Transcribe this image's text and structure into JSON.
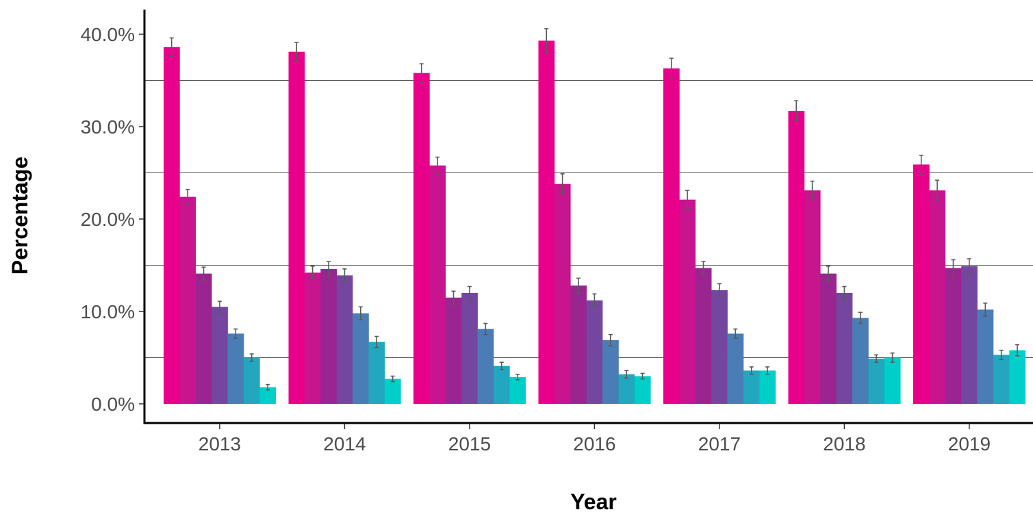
{
  "chart_data": {
    "type": "bar",
    "title": "",
    "xlabel": "Year",
    "ylabel": "Percentage",
    "ylim": [
      0,
      42
    ],
    "y_ticks": [
      "0.0%",
      "10.0%",
      "20.0%",
      "30.0%",
      "40.0%"
    ],
    "y_tick_values": [
      0,
      10,
      20,
      30,
      40
    ],
    "gridlines": [
      5,
      15,
      25,
      35
    ],
    "categories": [
      "2013",
      "2014",
      "2015",
      "2016",
      "2017",
      "2018",
      "2019"
    ],
    "series": [
      {
        "color": "#e8008a",
        "values": [
          38.6,
          38.1,
          35.8,
          39.3,
          36.3,
          31.7,
          25.9
        ],
        "error": [
          1.0,
          1.0,
          1.0,
          1.3,
          1.1,
          1.1,
          1.0
        ]
      },
      {
        "color": "#c8148f",
        "values": [
          22.4,
          14.2,
          25.8,
          23.8,
          22.1,
          23.1,
          23.1
        ],
        "error": [
          0.8,
          0.7,
          0.9,
          1.1,
          1.0,
          1.0,
          1.1
        ]
      },
      {
        "color": "#9a2590",
        "values": [
          14.1,
          14.6,
          11.5,
          12.8,
          14.7,
          14.1,
          14.7
        ],
        "error": [
          0.7,
          0.8,
          0.7,
          0.8,
          0.7,
          0.8,
          0.9
        ]
      },
      {
        "color": "#7446a0",
        "values": [
          10.5,
          13.9,
          12.0,
          11.2,
          12.3,
          12.0,
          14.9
        ],
        "error": [
          0.6,
          0.7,
          0.7,
          0.7,
          0.7,
          0.7,
          0.8
        ]
      },
      {
        "color": "#4a7cb5",
        "values": [
          7.6,
          9.8,
          8.1,
          6.9,
          7.6,
          9.3,
          10.2
        ],
        "error": [
          0.5,
          0.7,
          0.6,
          0.6,
          0.5,
          0.6,
          0.7
        ]
      },
      {
        "color": "#22a7bf",
        "values": [
          5.0,
          6.7,
          4.1,
          3.2,
          3.6,
          4.9,
          5.3
        ],
        "error": [
          0.4,
          0.6,
          0.4,
          0.4,
          0.4,
          0.4,
          0.5
        ]
      },
      {
        "color": "#00cec8",
        "values": [
          1.8,
          2.7,
          2.9,
          3.0,
          3.6,
          5.0,
          5.8
        ],
        "error": [
          0.3,
          0.3,
          0.3,
          0.3,
          0.4,
          0.5,
          0.6
        ]
      }
    ],
    "errorbar_color": "#5a5a5a",
    "gridline_color": "#555555",
    "axis_color": "#000000",
    "legend": "none"
  }
}
